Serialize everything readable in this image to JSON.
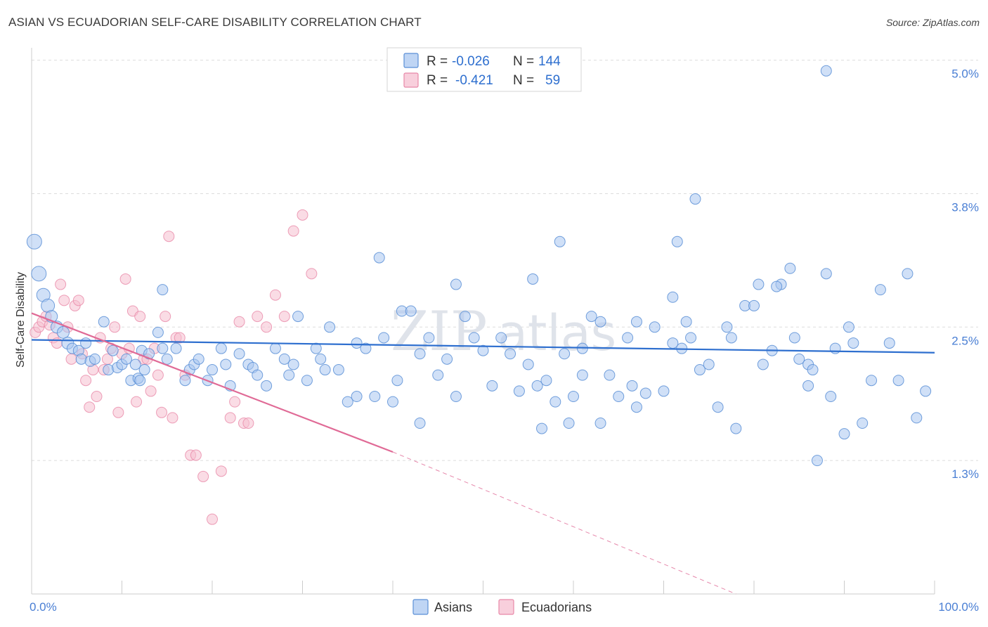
{
  "title": "ASIAN VS ECUADORIAN SELF-CARE DISABILITY CORRELATION CHART",
  "source": "Source: ZipAtlas.com",
  "watermark": {
    "zip": "ZIP",
    "atlas": "atlas"
  },
  "colors": {
    "asian_fill": "#a9c7f0",
    "asian_stroke": "#5b8fd6",
    "asian_line": "#2e6fcf",
    "ecuadorian_fill": "#f6bfd0",
    "ecuadorian_stroke": "#e888a8",
    "ecuadorian_line": "#e06a96",
    "tick_text": "#4a7fd4",
    "grid": "#dddddd"
  },
  "legend": {
    "rows": [
      {
        "r_label": "R = ",
        "r_value": "-0.026",
        "n_label": "N = ",
        "n_value": "144"
      },
      {
        "r_label": "R = ",
        "r_value": "-0.421",
        "n_label": "N = ",
        "n_value": "59"
      }
    ]
  },
  "bottom_legend": [
    "Asians",
    "Ecuadorians"
  ],
  "chart_data": {
    "type": "scatter",
    "title": "ASIAN VS ECUADORIAN SELF-CARE DISABILITY CORRELATION CHART",
    "xlabel": "",
    "ylabel": "Self-Care Disability",
    "x_tick_labels": [
      "0.0%",
      "100.0%"
    ],
    "y_tick_labels": [
      "1.3%",
      "2.5%",
      "3.8%",
      "5.0%"
    ],
    "y_ticks": [
      1.25,
      2.5,
      3.75,
      5.0
    ],
    "xlim": [
      0,
      100
    ],
    "ylim": [
      0,
      5.05
    ],
    "grid": true,
    "legend_position": "top-center",
    "series": [
      {
        "name": "Asians",
        "R": -0.026,
        "N": 144,
        "trend": {
          "x": [
            0,
            100
          ],
          "y": [
            2.38,
            2.26
          ]
        },
        "points": [
          [
            0.3,
            3.3,
            10
          ],
          [
            0.8,
            3.0,
            10
          ],
          [
            1.3,
            2.8,
            9
          ],
          [
            1.8,
            2.7,
            9
          ],
          [
            2.2,
            2.6,
            8
          ],
          [
            2.8,
            2.5,
            8
          ],
          [
            3.5,
            2.45,
            8
          ],
          [
            4.0,
            2.35,
            8
          ],
          [
            4.5,
            2.3,
            7
          ],
          [
            5.2,
            2.28,
            7
          ],
          [
            6.0,
            2.35,
            7
          ],
          [
            5.5,
            2.2,
            7
          ],
          [
            6.5,
            2.18,
            7
          ],
          [
            7.0,
            2.2,
            7
          ],
          [
            8.0,
            2.55,
            7
          ],
          [
            8.5,
            2.1,
            7
          ],
          [
            9.0,
            2.28,
            7
          ],
          [
            9.5,
            2.12,
            7
          ],
          [
            10.0,
            2.15,
            7
          ],
          [
            10.5,
            2.2,
            7
          ],
          [
            11.0,
            2.0,
            7
          ],
          [
            11.5,
            2.15,
            7
          ],
          [
            11.8,
            2.02,
            7
          ],
          [
            12.2,
            2.28,
            7
          ],
          [
            12.5,
            2.1,
            7
          ],
          [
            13.0,
            2.25,
            7
          ],
          [
            14.0,
            2.45,
            7
          ],
          [
            14.5,
            2.3,
            7
          ],
          [
            15.0,
            2.2,
            7
          ],
          [
            16.0,
            2.3,
            7
          ],
          [
            17.0,
            2.0,
            7
          ],
          [
            17.5,
            2.1,
            7
          ],
          [
            18.0,
            2.15,
            7
          ],
          [
            18.5,
            2.2,
            7
          ],
          [
            19.5,
            2.0,
            7
          ],
          [
            20.0,
            2.1,
            7
          ],
          [
            21.0,
            2.3,
            7
          ],
          [
            21.5,
            2.15,
            7
          ],
          [
            22.0,
            1.95,
            7
          ],
          [
            23.0,
            2.25,
            7
          ],
          [
            24.0,
            2.15,
            7
          ],
          [
            24.5,
            2.12,
            7
          ],
          [
            25.0,
            2.05,
            7
          ],
          [
            26.0,
            1.95,
            7
          ],
          [
            27.0,
            2.3,
            7
          ],
          [
            28.0,
            2.2,
            7
          ],
          [
            28.5,
            2.05,
            7
          ],
          [
            29.0,
            2.15,
            7
          ],
          [
            30.5,
            2.0,
            7
          ],
          [
            31.5,
            2.3,
            7
          ],
          [
            32.0,
            2.2,
            7
          ],
          [
            32.5,
            2.1,
            7
          ],
          [
            33.0,
            2.5,
            7
          ],
          [
            34.0,
            2.1,
            7
          ],
          [
            35.0,
            1.8,
            7
          ],
          [
            36.0,
            2.35,
            7
          ],
          [
            37.0,
            2.3,
            7
          ],
          [
            38.0,
            1.85,
            7
          ],
          [
            39.0,
            2.4,
            7
          ],
          [
            40.0,
            1.8,
            7
          ],
          [
            41.0,
            2.65,
            7
          ],
          [
            42.0,
            2.65,
            7
          ],
          [
            43.0,
            2.25,
            7
          ],
          [
            44.0,
            2.4,
            7
          ],
          [
            45.0,
            2.05,
            7
          ],
          [
            46.0,
            2.2,
            7
          ],
          [
            47.0,
            1.85,
            7
          ],
          [
            48.0,
            2.6,
            7
          ],
          [
            49.0,
            2.4,
            7
          ],
          [
            50.0,
            2.28,
            7
          ],
          [
            51.0,
            1.95,
            7
          ],
          [
            52.0,
            2.4,
            7
          ],
          [
            53.0,
            2.25,
            7
          ],
          [
            54.0,
            1.9,
            7
          ],
          [
            55.0,
            2.15,
            7
          ],
          [
            56.0,
            1.95,
            7
          ],
          [
            57.0,
            2.0,
            7
          ],
          [
            58.0,
            1.8,
            7
          ],
          [
            59.0,
            2.25,
            7
          ],
          [
            60.0,
            1.85,
            7
          ],
          [
            61.0,
            2.3,
            7
          ],
          [
            62.0,
            2.6,
            7
          ],
          [
            63.0,
            1.6,
            7
          ],
          [
            64.0,
            2.05,
            7
          ],
          [
            65.0,
            1.85,
            7
          ],
          [
            66.0,
            2.4,
            7
          ],
          [
            67.0,
            1.75,
            7
          ],
          [
            68.0,
            1.88,
            7
          ],
          [
            69.0,
            2.5,
            7
          ],
          [
            70.0,
            1.9,
            7
          ],
          [
            71.0,
            2.78,
            7
          ],
          [
            72.0,
            2.3,
            7
          ],
          [
            72.5,
            2.55,
            7
          ],
          [
            73.0,
            2.4,
            7
          ],
          [
            74.0,
            2.1,
            7
          ],
          [
            75.0,
            2.15,
            7
          ],
          [
            76.0,
            1.75,
            7
          ],
          [
            77.0,
            2.5,
            7
          ],
          [
            77.5,
            2.4,
            7
          ],
          [
            78.0,
            1.55,
            7
          ],
          [
            79.0,
            2.7,
            7
          ],
          [
            80.0,
            2.7,
            7
          ],
          [
            81.0,
            2.15,
            7
          ],
          [
            82.0,
            2.28,
            7
          ],
          [
            83.0,
            2.9,
            7
          ],
          [
            84.0,
            3.05,
            7
          ],
          [
            85.0,
            2.2,
            7
          ],
          [
            86.0,
            2.15,
            7
          ],
          [
            86.5,
            2.1,
            7
          ],
          [
            87.0,
            1.25,
            7
          ],
          [
            88.0,
            3.0,
            7
          ],
          [
            88.5,
            1.85,
            7
          ],
          [
            89.0,
            2.3,
            7
          ],
          [
            90.0,
            1.5,
            7
          ],
          [
            91.0,
            2.35,
            7
          ],
          [
            92.0,
            1.6,
            7
          ],
          [
            93.0,
            2.0,
            7
          ],
          [
            94.0,
            2.85,
            7
          ],
          [
            95.0,
            2.35,
            7
          ],
          [
            96.0,
            2.0,
            7
          ],
          [
            97.0,
            3.0,
            7
          ],
          [
            98.0,
            1.65,
            7
          ],
          [
            99.0,
            1.9,
            7
          ],
          [
            38.5,
            3.15,
            7
          ],
          [
            47.0,
            2.9,
            7
          ],
          [
            55.5,
            2.95,
            7
          ],
          [
            58.5,
            3.3,
            7
          ],
          [
            63.0,
            2.55,
            7
          ],
          [
            67.0,
            2.55,
            7
          ],
          [
            71.0,
            2.35,
            7
          ],
          [
            71.5,
            3.3,
            7
          ],
          [
            73.5,
            3.7,
            7
          ],
          [
            80.5,
            2.9,
            7
          ],
          [
            82.5,
            2.88,
            7
          ],
          [
            84.5,
            2.4,
            7
          ],
          [
            86.0,
            1.95,
            7
          ],
          [
            88.0,
            4.9,
            7
          ],
          [
            90.5,
            2.5,
            7
          ],
          [
            66.5,
            1.95,
            7
          ],
          [
            61.0,
            2.05,
            7
          ],
          [
            59.5,
            1.6,
            7
          ],
          [
            56.5,
            1.55,
            7
          ],
          [
            43.0,
            1.6,
            7
          ],
          [
            40.5,
            2.0,
            7
          ],
          [
            36.0,
            1.85,
            7
          ],
          [
            29.5,
            2.6,
            7
          ],
          [
            12.0,
            2.0,
            7
          ],
          [
            14.5,
            2.85,
            7
          ]
        ]
      },
      {
        "name": "Ecuadorians",
        "R": -0.421,
        "N": 59,
        "trend": {
          "x": [
            0,
            40
          ],
          "y": [
            2.63,
            1.33
          ]
        },
        "trend_extrapolated": {
          "x": [
            40,
            78
          ],
          "y": [
            1.33,
            0.0
          ]
        },
        "points": [
          [
            0.4,
            2.45
          ],
          [
            0.8,
            2.5
          ],
          [
            1.2,
            2.55
          ],
          [
            1.6,
            2.6
          ],
          [
            2.0,
            2.52
          ],
          [
            2.4,
            2.4
          ],
          [
            2.8,
            2.35
          ],
          [
            3.2,
            2.9
          ],
          [
            3.6,
            2.75
          ],
          [
            4.0,
            2.5
          ],
          [
            4.4,
            2.2
          ],
          [
            4.8,
            2.7
          ],
          [
            5.2,
            2.75
          ],
          [
            5.6,
            2.25
          ],
          [
            6.0,
            2.0
          ],
          [
            6.4,
            1.75
          ],
          [
            6.8,
            2.1
          ],
          [
            7.2,
            1.85
          ],
          [
            7.6,
            2.4
          ],
          [
            8.0,
            2.1
          ],
          [
            8.4,
            2.2
          ],
          [
            8.8,
            2.3
          ],
          [
            9.2,
            2.5
          ],
          [
            9.6,
            1.7
          ],
          [
            10.0,
            2.25
          ],
          [
            10.4,
            2.95
          ],
          [
            10.8,
            2.3
          ],
          [
            11.2,
            2.65
          ],
          [
            11.6,
            1.8
          ],
          [
            12.0,
            2.6
          ],
          [
            12.4,
            2.2
          ],
          [
            12.8,
            2.2
          ],
          [
            13.2,
            1.9
          ],
          [
            13.6,
            2.3
          ],
          [
            14.0,
            2.05
          ],
          [
            14.4,
            1.7
          ],
          [
            14.8,
            2.6
          ],
          [
            15.2,
            3.35
          ],
          [
            15.6,
            1.65
          ],
          [
            16.0,
            2.4
          ],
          [
            16.4,
            2.4
          ],
          [
            17.0,
            2.05
          ],
          [
            17.6,
            1.3
          ],
          [
            18.2,
            1.3
          ],
          [
            19.0,
            1.1
          ],
          [
            20.0,
            0.7
          ],
          [
            21.0,
            1.15
          ],
          [
            22.0,
            1.65
          ],
          [
            22.5,
            1.8
          ],
          [
            23.0,
            2.55
          ],
          [
            23.5,
            1.6
          ],
          [
            24.0,
            1.6
          ],
          [
            25.0,
            2.6
          ],
          [
            26.0,
            2.5
          ],
          [
            27.0,
            2.8
          ],
          [
            28.0,
            2.6
          ],
          [
            29.0,
            3.4
          ],
          [
            30.0,
            3.55
          ],
          [
            31.0,
            3.0
          ]
        ]
      }
    ]
  }
}
